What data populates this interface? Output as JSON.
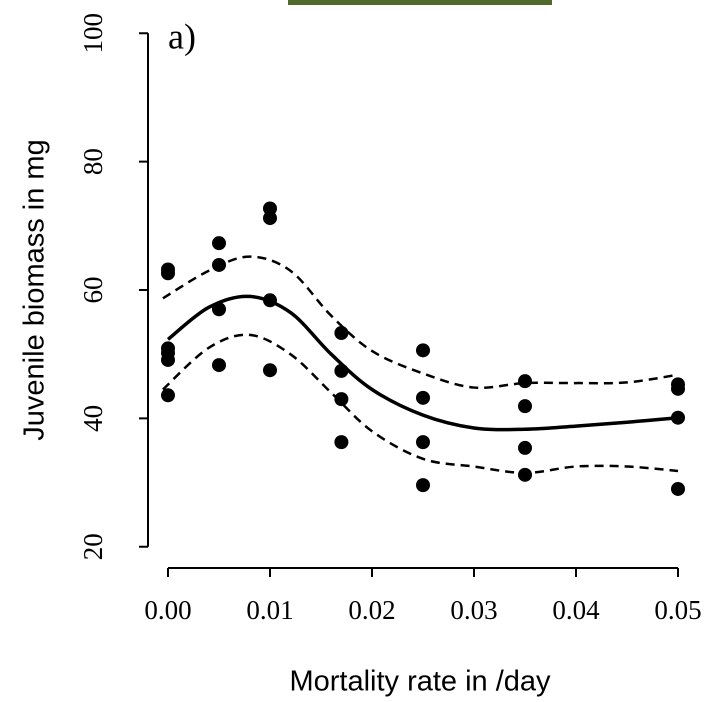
{
  "chart_data": {
    "type": "scatter",
    "annotation": "a)",
    "x_label": "Mortality rate in /day",
    "y_label": "Juvenile biomass in mg",
    "xlim": [
      -0.0015,
      0.0515
    ],
    "ylim": [
      17,
      103
    ],
    "xticks": [
      {
        "value": 0,
        "label": "0.00"
      },
      {
        "value": 0.01,
        "label": "0.01"
      },
      {
        "value": 0.02,
        "label": "0.02"
      },
      {
        "value": 0.03,
        "label": "0.03"
      },
      {
        "value": 0.04,
        "label": "0.04"
      },
      {
        "value": 0.05,
        "label": "0.05"
      }
    ],
    "yticks": [
      20,
      40,
      60,
      80,
      100
    ],
    "series": [
      {
        "type": "scatter",
        "color": "#000000",
        "x": [
          0,
          0,
          0,
          0,
          0,
          0,
          0.005,
          0.005,
          0.005,
          0.005,
          0.01,
          0.01,
          0.01,
          0.01,
          0.017,
          0.017,
          0.017,
          0.017,
          0.025,
          0.025,
          0.025,
          0.025,
          0.035,
          0.035,
          0.035,
          0.035,
          0.05,
          0.05,
          0.05,
          0.05
        ],
        "values": [
          63.2,
          62.6,
          50.9,
          50.2,
          49.1,
          43.6,
          67.3,
          63.9,
          57.0,
          48.3,
          72.7,
          71.2,
          58.4,
          47.5,
          53.3,
          47.4,
          43.0,
          36.3,
          50.6,
          43.2,
          36.3,
          29.6,
          45.8,
          41.9,
          35.4,
          31.2,
          45.3,
          44.6,
          40.1,
          29.0
        ]
      },
      {
        "type": "line",
        "color": "#000000",
        "dash": false,
        "x": [
          0,
          0.004,
          0.008,
          0.012,
          0.016,
          0.02,
          0.025,
          0.03,
          0.035,
          0.04,
          0.045,
          0.05
        ],
        "values": [
          52.3,
          57.3,
          59.0,
          56.5,
          50.0,
          44.5,
          40.5,
          38.5,
          38.3,
          38.8,
          39.4,
          40.1
        ]
      },
      {
        "type": "line",
        "color": "#000000",
        "dash": true,
        "x": [
          -0.0005,
          0.004,
          0.008,
          0.012,
          0.016,
          0.02,
          0.025,
          0.03,
          0.035,
          0.04,
          0.045,
          0.05
        ],
        "values": [
          58.7,
          63.0,
          65.2,
          63.0,
          56.0,
          50.5,
          47.0,
          44.8,
          45.5,
          45.5,
          45.6,
          46.8
        ]
      },
      {
        "type": "line",
        "color": "#000000",
        "dash": true,
        "x": [
          -0.0005,
          0.004,
          0.008,
          0.012,
          0.016,
          0.02,
          0.025,
          0.03,
          0.035,
          0.04,
          0.045,
          0.05
        ],
        "values": [
          44.5,
          51.0,
          53.0,
          50.0,
          44.0,
          38.0,
          33.7,
          32.5,
          31.5,
          32.5,
          32.5,
          31.8
        ]
      }
    ]
  }
}
